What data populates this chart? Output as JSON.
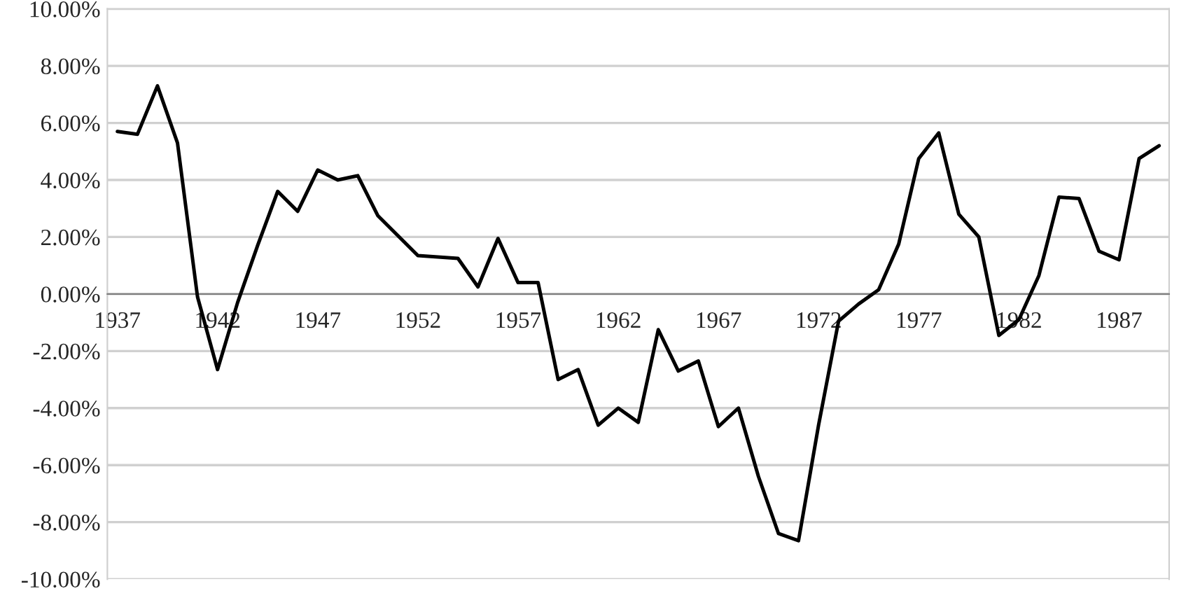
{
  "chart_data": {
    "type": "line",
    "categories": [
      "1937",
      null,
      null,
      null,
      null,
      "1942",
      null,
      null,
      null,
      null,
      "1947",
      null,
      null,
      null,
      null,
      "1952",
      null,
      null,
      null,
      null,
      "1957",
      null,
      null,
      null,
      null,
      "1962",
      null,
      null,
      null,
      null,
      "1967",
      null,
      null,
      null,
      null,
      "1972",
      null,
      null,
      null,
      null,
      "1977",
      null,
      null,
      null,
      null,
      "1982",
      null,
      null,
      null,
      null,
      "1987",
      null,
      null
    ],
    "series": [
      {
        "color": "#000000",
        "values": [
          5.7,
          5.6,
          7.3,
          5.3,
          -0.1,
          -2.65,
          -0.3,
          1.7,
          3.6,
          2.9,
          4.35,
          4.0,
          4.15,
          2.75,
          2.05,
          1.35,
          1.3,
          1.25,
          0.25,
          1.95,
          0.4,
          0.4,
          -3.0,
          -2.65,
          -4.6,
          -4.0,
          -4.5,
          -1.25,
          -2.7,
          -2.35,
          -4.65,
          -4.0,
          -6.4,
          -8.4,
          -8.65,
          -4.6,
          -0.95,
          -0.35,
          0.15,
          1.75,
          4.75,
          5.65,
          2.8,
          2.0,
          -1.45,
          -0.9,
          0.65,
          3.4,
          3.35,
          1.5,
          1.2,
          4.75,
          5.2
        ]
      }
    ],
    "ylim": [
      -10,
      10
    ],
    "yticks": [
      {
        "value": 10,
        "label": "10.00%"
      },
      {
        "value": 8,
        "label": "8.00%"
      },
      {
        "value": 6,
        "label": "6.00%"
      },
      {
        "value": 4,
        "label": "4.00%"
      },
      {
        "value": 2,
        "label": "2.00%"
      },
      {
        "value": 0,
        "label": "0.00%"
      },
      {
        "value": -2,
        "label": "-2.00%"
      },
      {
        "value": -4,
        "label": "-4.00%"
      },
      {
        "value": -6,
        "label": "-6.00%"
      },
      {
        "value": -8,
        "label": "-8.00%"
      },
      {
        "value": -10,
        "label": "-10.00%"
      }
    ],
    "grid": "y",
    "marker": "none",
    "line_style": "solid"
  }
}
